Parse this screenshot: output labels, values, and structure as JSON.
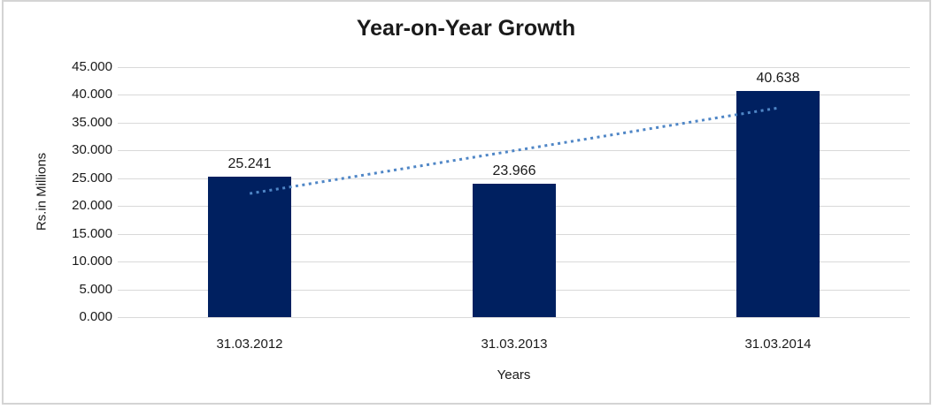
{
  "chart_data": {
    "type": "bar",
    "title": "Year-on-Year Growth",
    "categories": [
      "31.03.2012",
      "31.03.2013",
      "31.03.2014"
    ],
    "values": [
      25.241,
      23.966,
      40.638
    ],
    "data_labels": [
      "25.241",
      "23.966",
      "40.638"
    ],
    "xlabel": "Years",
    "ylabel": "Rs.in Millions",
    "ylim": [
      0,
      45
    ],
    "ytick_step": 5,
    "ytick_labels": [
      "45.000",
      "40.000",
      "35.000",
      "30.000",
      "25.000",
      "20.000",
      "15.000",
      "10.000",
      "5.000",
      "0.000"
    ],
    "grid": true,
    "legend": "none",
    "trendline": {
      "type": "linear",
      "style": "dotted",
      "color": "#4f86c6"
    },
    "colors": {
      "bar": "#002060",
      "gridline": "#d9d9d9",
      "border": "#d4d4d4",
      "text": "#1a1a1a",
      "background": "#ffffff"
    }
  }
}
